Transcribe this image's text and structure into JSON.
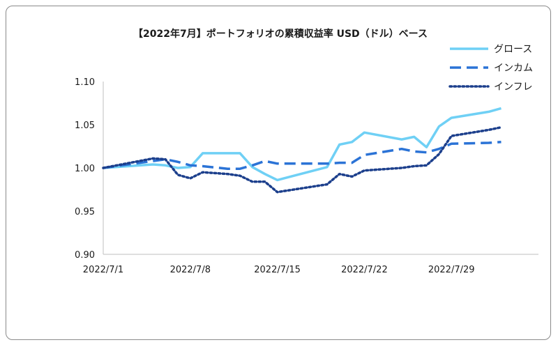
{
  "chart_data": {
    "type": "line",
    "title": "【2022年7月】ポートフォリオの累積収益率 USD（ドル）ベース",
    "xlabel": "",
    "ylabel": "",
    "ylim": [
      0.9,
      1.1
    ],
    "yticks": [
      "1.10",
      "1.05",
      "1.00",
      "0.95",
      "0.90"
    ],
    "ytick_values": [
      1.1,
      1.05,
      1.0,
      0.95,
      0.9
    ],
    "xlim": [
      "2022-07-01",
      "2022-08-05"
    ],
    "xtick_labels": [
      "2022/7/1",
      "2022/7/8",
      "2022/7/15",
      "2022/7/22",
      "2022/7/29"
    ],
    "xtick_dates": [
      "2022-07-01",
      "2022-07-08",
      "2022-07-15",
      "2022-07-22",
      "2022-07-29"
    ],
    "grid": false,
    "legend_position": "top-right",
    "series": [
      {
        "name": "グロース",
        "color": "#6fd0f5",
        "style": "solid",
        "points": [
          [
            "2022-07-01",
            1.0
          ],
          [
            "2022-07-05",
            1.004
          ],
          [
            "2022-07-06",
            1.003
          ],
          [
            "2022-07-07",
            1.0
          ],
          [
            "2022-07-08",
            1.001
          ],
          [
            "2022-07-09",
            1.017
          ],
          [
            "2022-07-11",
            1.017
          ],
          [
            "2022-07-12",
            1.017
          ],
          [
            "2022-07-13",
            1.001
          ],
          [
            "2022-07-14",
            0.993
          ],
          [
            "2022-07-15",
            0.986
          ],
          [
            "2022-07-19",
            1.001
          ],
          [
            "2022-07-20",
            1.027
          ],
          [
            "2022-07-21",
            1.03
          ],
          [
            "2022-07-22",
            1.041
          ],
          [
            "2022-07-25",
            1.033
          ],
          [
            "2022-07-26",
            1.036
          ],
          [
            "2022-07-27",
            1.024
          ],
          [
            "2022-07-28",
            1.048
          ],
          [
            "2022-07-29",
            1.058
          ],
          [
            "2022-08-01",
            1.065
          ],
          [
            "2022-08-02",
            1.069
          ]
        ]
      },
      {
        "name": "インカム",
        "color": "#2b73d6",
        "style": "dashed",
        "points": [
          [
            "2022-07-01",
            1.0
          ],
          [
            "2022-07-05",
            1.008
          ],
          [
            "2022-07-06",
            1.01
          ],
          [
            "2022-07-07",
            1.007
          ],
          [
            "2022-07-08",
            1.003
          ],
          [
            "2022-07-09",
            1.002
          ],
          [
            "2022-07-11",
            0.999
          ],
          [
            "2022-07-12",
            0.999
          ],
          [
            "2022-07-13",
            1.003
          ],
          [
            "2022-07-14",
            1.008
          ],
          [
            "2022-07-15",
            1.005
          ],
          [
            "2022-07-19",
            1.005
          ],
          [
            "2022-07-20",
            1.006
          ],
          [
            "2022-07-21",
            1.006
          ],
          [
            "2022-07-22",
            1.015
          ],
          [
            "2022-07-25",
            1.022
          ],
          [
            "2022-07-26",
            1.019
          ],
          [
            "2022-07-27",
            1.018
          ],
          [
            "2022-07-28",
            1.022
          ],
          [
            "2022-07-29",
            1.028
          ],
          [
            "2022-08-01",
            1.029
          ],
          [
            "2022-08-02",
            1.03
          ]
        ]
      },
      {
        "name": "インフレ",
        "color": "#1c3f8c",
        "style": "dotted",
        "points": [
          [
            "2022-07-01",
            1.0
          ],
          [
            "2022-07-05",
            1.011
          ],
          [
            "2022-07-06",
            1.01
          ],
          [
            "2022-07-07",
            0.992
          ],
          [
            "2022-07-08",
            0.988
          ],
          [
            "2022-07-09",
            0.995
          ],
          [
            "2022-07-11",
            0.993
          ],
          [
            "2022-07-12",
            0.991
          ],
          [
            "2022-07-13",
            0.984
          ],
          [
            "2022-07-14",
            0.984
          ],
          [
            "2022-07-15",
            0.972
          ],
          [
            "2022-07-19",
            0.981
          ],
          [
            "2022-07-20",
            0.993
          ],
          [
            "2022-07-21",
            0.99
          ],
          [
            "2022-07-22",
            0.997
          ],
          [
            "2022-07-25",
            1.0
          ],
          [
            "2022-07-26",
            1.002
          ],
          [
            "2022-07-27",
            1.003
          ],
          [
            "2022-07-28",
            1.016
          ],
          [
            "2022-07-29",
            1.037
          ],
          [
            "2022-08-01",
            1.044
          ],
          [
            "2022-08-02",
            1.047
          ]
        ]
      }
    ]
  }
}
